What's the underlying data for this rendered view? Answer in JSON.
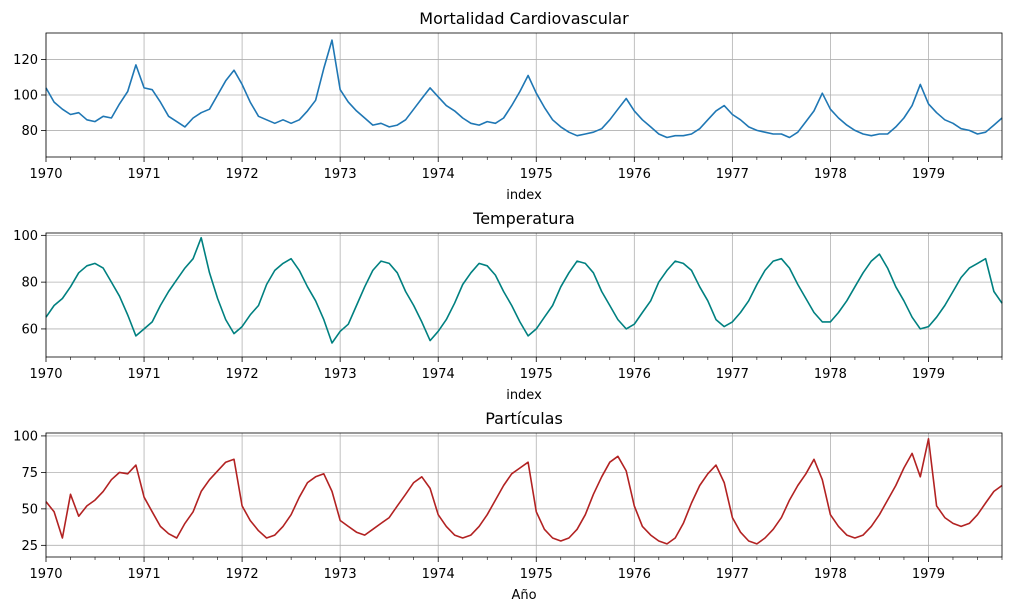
{
  "chart_data": [
    {
      "type": "line",
      "title": "Mortalidad Cardiovascular",
      "xlabel": "index",
      "ylabel": "",
      "color": "#1f77b4",
      "xlim": [
        1970.0,
        1979.75
      ],
      "ylim": [
        65,
        135
      ],
      "yticks": [
        80,
        100,
        120
      ],
      "x_ticks": [
        1970,
        1971,
        1972,
        1973,
        1974,
        1975,
        1976,
        1977,
        1978,
        1979
      ],
      "series": [
        {
          "name": "Mortalidad Cardiovascular",
          "x": [
            1970.0,
            1970.083,
            1970.167,
            1970.25,
            1970.333,
            1970.417,
            1970.5,
            1970.583,
            1970.667,
            1970.75,
            1970.833,
            1970.917,
            1971.0,
            1971.083,
            1971.167,
            1971.25,
            1971.333,
            1971.417,
            1971.5,
            1971.583,
            1971.667,
            1971.75,
            1971.833,
            1971.917,
            1972.0,
            1972.083,
            1972.167,
            1972.25,
            1972.333,
            1972.417,
            1972.5,
            1972.583,
            1972.667,
            1972.75,
            1972.833,
            1972.917,
            1973.0,
            1973.083,
            1973.167,
            1973.25,
            1973.333,
            1973.417,
            1973.5,
            1973.583,
            1973.667,
            1973.75,
            1973.833,
            1973.917,
            1974.0,
            1974.083,
            1974.167,
            1974.25,
            1974.333,
            1974.417,
            1974.5,
            1974.583,
            1974.667,
            1974.75,
            1974.833,
            1974.917,
            1975.0,
            1975.083,
            1975.167,
            1975.25,
            1975.333,
            1975.417,
            1975.5,
            1975.583,
            1975.667,
            1975.75,
            1975.833,
            1975.917,
            1976.0,
            1976.083,
            1976.167,
            1976.25,
            1976.333,
            1976.417,
            1976.5,
            1976.583,
            1976.667,
            1976.75,
            1976.833,
            1976.917,
            1977.0,
            1977.083,
            1977.167,
            1977.25,
            1977.333,
            1977.417,
            1977.5,
            1977.583,
            1977.667,
            1977.75,
            1977.833,
            1977.917,
            1978.0,
            1978.083,
            1978.167,
            1978.25,
            1978.333,
            1978.417,
            1978.5,
            1978.583,
            1978.667,
            1978.75,
            1978.833,
            1978.917,
            1979.0,
            1979.083,
            1979.167,
            1979.25,
            1979.333,
            1979.417,
            1979.5,
            1979.583,
            1979.667,
            1979.75
          ],
          "values": [
            104,
            96,
            92,
            89,
            90,
            86,
            85,
            88,
            87,
            95,
            102,
            117,
            104,
            103,
            96,
            88,
            85,
            82,
            87,
            90,
            92,
            100,
            108,
            114,
            106,
            96,
            88,
            86,
            84,
            86,
            84,
            86,
            91,
            97,
            115,
            131,
            103,
            96,
            91,
            87,
            83,
            84,
            82,
            83,
            86,
            92,
            98,
            104,
            99,
            94,
            91,
            87,
            84,
            83,
            85,
            84,
            87,
            94,
            102,
            111,
            101,
            93,
            86,
            82,
            79,
            77,
            78,
            79,
            81,
            86,
            92,
            98,
            91,
            86,
            82,
            78,
            76,
            77,
            77,
            78,
            81,
            86,
            91,
            94,
            89,
            86,
            82,
            80,
            79,
            78,
            78,
            76,
            79,
            85,
            91,
            101,
            92,
            87,
            83,
            80,
            78,
            77,
            78,
            78,
            82,
            87,
            94,
            106,
            95,
            90,
            86,
            84,
            81,
            80,
            78,
            79,
            83,
            87
          ]
        }
      ]
    },
    {
      "type": "line",
      "title": "Temperatura",
      "xlabel": "index",
      "ylabel": "",
      "color": "#008080",
      "xlim": [
        1970.0,
        1979.75
      ],
      "ylim": [
        48,
        101
      ],
      "yticks": [
        60,
        80,
        100
      ],
      "x_ticks": [
        1970,
        1971,
        1972,
        1973,
        1974,
        1975,
        1976,
        1977,
        1978,
        1979
      ],
      "series": [
        {
          "name": "Temperatura",
          "x": [
            1970.0,
            1970.083,
            1970.167,
            1970.25,
            1970.333,
            1970.417,
            1970.5,
            1970.583,
            1970.667,
            1970.75,
            1970.833,
            1970.917,
            1971.0,
            1971.083,
            1971.167,
            1971.25,
            1971.333,
            1971.417,
            1971.5,
            1971.583,
            1971.667,
            1971.75,
            1971.833,
            1971.917,
            1972.0,
            1972.083,
            1972.167,
            1972.25,
            1972.333,
            1972.417,
            1972.5,
            1972.583,
            1972.667,
            1972.75,
            1972.833,
            1972.917,
            1973.0,
            1973.083,
            1973.167,
            1973.25,
            1973.333,
            1973.417,
            1973.5,
            1973.583,
            1973.667,
            1973.75,
            1973.833,
            1973.917,
            1974.0,
            1974.083,
            1974.167,
            1974.25,
            1974.333,
            1974.417,
            1974.5,
            1974.583,
            1974.667,
            1974.75,
            1974.833,
            1974.917,
            1975.0,
            1975.083,
            1975.167,
            1975.25,
            1975.333,
            1975.417,
            1975.5,
            1975.583,
            1975.667,
            1975.75,
            1975.833,
            1975.917,
            1976.0,
            1976.083,
            1976.167,
            1976.25,
            1976.333,
            1976.417,
            1976.5,
            1976.583,
            1976.667,
            1976.75,
            1976.833,
            1976.917,
            1977.0,
            1977.083,
            1977.167,
            1977.25,
            1977.333,
            1977.417,
            1977.5,
            1977.583,
            1977.667,
            1977.75,
            1977.833,
            1977.917,
            1978.0,
            1978.083,
            1978.167,
            1978.25,
            1978.333,
            1978.417,
            1978.5,
            1978.583,
            1978.667,
            1978.75,
            1978.833,
            1978.917,
            1979.0,
            1979.083,
            1979.167,
            1979.25,
            1979.333,
            1979.417,
            1979.5,
            1979.583,
            1979.667,
            1979.75
          ],
          "values": [
            65,
            70,
            73,
            78,
            84,
            87,
            88,
            86,
            80,
            74,
            66,
            57,
            60,
            63,
            70,
            76,
            81,
            86,
            90,
            99,
            84,
            73,
            64,
            58,
            61,
            66,
            70,
            79,
            85,
            88,
            90,
            85,
            78,
            72,
            64,
            54,
            59,
            62,
            70,
            78,
            85,
            89,
            88,
            84,
            76,
            70,
            63,
            55,
            59,
            64,
            71,
            79,
            84,
            88,
            87,
            83,
            76,
            70,
            63,
            57,
            60,
            65,
            70,
            78,
            84,
            89,
            88,
            84,
            76,
            70,
            64,
            60,
            62,
            67,
            72,
            80,
            85,
            89,
            88,
            85,
            78,
            72,
            64,
            61,
            63,
            67,
            72,
            79,
            85,
            89,
            90,
            86,
            79,
            73,
            67,
            63,
            63,
            67,
            72,
            78,
            84,
            89,
            92,
            86,
            78,
            72,
            65,
            60,
            61,
            65,
            70,
            76,
            82,
            86,
            88,
            90,
            76,
            71
          ]
        }
      ]
    },
    {
      "type": "line",
      "title": "Partículas",
      "xlabel": "Año",
      "ylabel": "",
      "color": "#b22222",
      "xlim": [
        1970.0,
        1979.75
      ],
      "ylim": [
        17,
        102
      ],
      "yticks": [
        25,
        50,
        75,
        100
      ],
      "x_ticks": [
        1970,
        1971,
        1972,
        1973,
        1974,
        1975,
        1976,
        1977,
        1978,
        1979
      ],
      "series": [
        {
          "name": "Partículas",
          "x": [
            1970.0,
            1970.083,
            1970.167,
            1970.25,
            1970.333,
            1970.417,
            1970.5,
            1970.583,
            1970.667,
            1970.75,
            1970.833,
            1970.917,
            1971.0,
            1971.083,
            1971.167,
            1971.25,
            1971.333,
            1971.417,
            1971.5,
            1971.583,
            1971.667,
            1971.75,
            1971.833,
            1971.917,
            1972.0,
            1972.083,
            1972.167,
            1972.25,
            1972.333,
            1972.417,
            1972.5,
            1972.583,
            1972.667,
            1972.75,
            1972.833,
            1972.917,
            1973.0,
            1973.083,
            1973.167,
            1973.25,
            1973.333,
            1973.417,
            1973.5,
            1973.583,
            1973.667,
            1973.75,
            1973.833,
            1973.917,
            1974.0,
            1974.083,
            1974.167,
            1974.25,
            1974.333,
            1974.417,
            1974.5,
            1974.583,
            1974.667,
            1974.75,
            1974.833,
            1974.917,
            1975.0,
            1975.083,
            1975.167,
            1975.25,
            1975.333,
            1975.417,
            1975.5,
            1975.583,
            1975.667,
            1975.75,
            1975.833,
            1975.917,
            1976.0,
            1976.083,
            1976.167,
            1976.25,
            1976.333,
            1976.417,
            1976.5,
            1976.583,
            1976.667,
            1976.75,
            1976.833,
            1976.917,
            1977.0,
            1977.083,
            1977.167,
            1977.25,
            1977.333,
            1977.417,
            1977.5,
            1977.583,
            1977.667,
            1977.75,
            1977.833,
            1977.917,
            1978.0,
            1978.083,
            1978.167,
            1978.25,
            1978.333,
            1978.417,
            1978.5,
            1978.583,
            1978.667,
            1978.75,
            1978.833,
            1978.917,
            1979.0,
            1979.083,
            1979.167,
            1979.25,
            1979.333,
            1979.417,
            1979.5,
            1979.583,
            1979.667,
            1979.75
          ],
          "values": [
            55,
            48,
            30,
            60,
            45,
            52,
            56,
            62,
            70,
            75,
            74,
            80,
            58,
            48,
            38,
            33,
            30,
            40,
            48,
            62,
            70,
            76,
            82,
            84,
            52,
            42,
            35,
            30,
            32,
            38,
            46,
            58,
            68,
            72,
            74,
            62,
            42,
            38,
            34,
            32,
            36,
            40,
            44,
            52,
            60,
            68,
            72,
            64,
            46,
            38,
            32,
            30,
            32,
            38,
            46,
            56,
            66,
            74,
            78,
            82,
            48,
            36,
            30,
            28,
            30,
            36,
            46,
            60,
            72,
            82,
            86,
            76,
            52,
            38,
            32,
            28,
            26,
            30,
            40,
            54,
            66,
            74,
            80,
            68,
            44,
            34,
            28,
            26,
            30,
            36,
            44,
            56,
            66,
            74,
            84,
            70,
            46,
            38,
            32,
            30,
            32,
            38,
            46,
            56,
            66,
            78,
            88,
            72,
            98,
            52,
            44,
            40,
            38,
            40,
            46,
            54,
            62,
            66
          ]
        }
      ]
    }
  ]
}
